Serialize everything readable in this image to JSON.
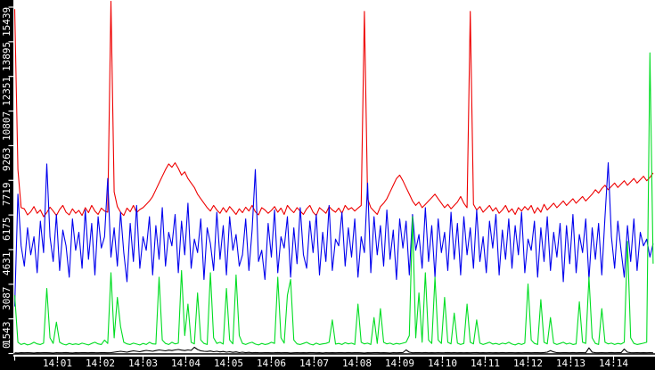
{
  "chart_data": {
    "type": "line",
    "grid": false,
    "legend": false,
    "plot_background": "#ffffff",
    "axis_strip_background": "#000000",
    "axis_text_color": "#ffffff",
    "x_axis": {
      "start_time": "14:00",
      "end_time": "14:15",
      "minutes_per_tick": 1,
      "tick_labels": [
        "14:01",
        "14:02",
        "14:03",
        "14:04",
        "14:05",
        "14:06",
        "14:07",
        "14:08",
        "14:09",
        "14:10",
        "14:11",
        "14:12",
        "14:13",
        "14:14"
      ]
    },
    "y_axis": {
      "min": 0,
      "max": 15439,
      "ticks": [
        0,
        1543,
        3087,
        4631,
        6175,
        7719,
        9263,
        10807,
        12351,
        13895,
        15439
      ],
      "tick_labels": [
        "0",
        "1543",
        "3087",
        "4631",
        "6175",
        "7719",
        "9263",
        "10807",
        "12351",
        "13895",
        "15439"
      ]
    },
    "sample_step_minutes": 0.075,
    "series": [
      {
        "name": "red-series",
        "color": "#ee0000",
        "values": [
          15350,
          8200,
          6500,
          6450,
          6180,
          6320,
          6550,
          6250,
          6400,
          6100,
          6280,
          6520,
          6350,
          6150,
          6420,
          6600,
          6300,
          6180,
          6450,
          6250,
          6380,
          6150,
          6500,
          6280,
          6600,
          6350,
          6200,
          6480,
          6350,
          6300,
          15700,
          7200,
          6550,
          6300,
          6150,
          6480,
          6320,
          6600,
          6280,
          6420,
          6500,
          6650,
          6800,
          7000,
          7300,
          7600,
          7900,
          8200,
          8450,
          8300,
          8500,
          8250,
          7950,
          8100,
          7800,
          7600,
          7400,
          7100,
          6900,
          6700,
          6500,
          6350,
          6600,
          6400,
          6250,
          6500,
          6300,
          6550,
          6380,
          6200,
          6450,
          6280,
          6520,
          6350,
          6600,
          6320,
          6180,
          6500,
          6400,
          6250,
          6380,
          6550,
          6300,
          6480,
          6200,
          6600,
          6420,
          6280,
          6500,
          6350,
          6200,
          6450,
          6600,
          6300,
          6150,
          6500,
          6380,
          6250,
          6550,
          6400,
          6300,
          6480,
          6250,
          6600,
          6420,
          6500,
          6350,
          6480,
          6600,
          15250,
          6900,
          6500,
          6350,
          6200,
          6550,
          6700,
          6900,
          7200,
          7500,
          7800,
          7950,
          7700,
          7400,
          7100,
          6800,
          6600,
          6750,
          6500,
          6650,
          6800,
          6950,
          7100,
          6900,
          6700,
          6500,
          6650,
          6450,
          6600,
          6750,
          7000,
          6700,
          6500,
          15250,
          6650,
          6400,
          6550,
          6300,
          6450,
          6600,
          6350,
          6500,
          6250,
          6400,
          6600,
          6300,
          6450,
          6200,
          6500,
          6350,
          6550,
          6400,
          6600,
          6250,
          6500,
          6300,
          6650,
          6400,
          6550,
          6700,
          6500,
          6650,
          6800,
          6600,
          6750,
          6900,
          6700,
          6850,
          7000,
          6800,
          6950,
          7100,
          7300,
          7150,
          7350,
          7500,
          7300,
          7450,
          7600,
          7400,
          7550,
          7700,
          7500,
          7650,
          7800,
          7600,
          7750,
          7900,
          7700,
          7850,
          8050
        ]
      },
      {
        "name": "blue-series",
        "color": "#0000ee",
        "values": [
          2100,
          7100,
          4800,
          3900,
          5600,
          4400,
          5200,
          3600,
          5900,
          4500,
          8450,
          5200,
          4100,
          6200,
          3700,
          5500,
          4800,
          3400,
          6000,
          4600,
          5400,
          3800,
          6400,
          4200,
          5800,
          3500,
          6100,
          4700,
          5200,
          7800,
          4300,
          5600,
          3900,
          6300,
          4500,
          3200,
          5800,
          4100,
          6600,
          3800,
          5200,
          4600,
          6100,
          3500,
          5700,
          4200,
          6500,
          3900,
          5400,
          4800,
          6200,
          3600,
          5900,
          4400,
          6700,
          3800,
          5100,
          4500,
          6000,
          3300,
          5600,
          4900,
          3700,
          6300,
          4200,
          5700,
          3500,
          6100,
          4600,
          5300,
          3900,
          4400,
          6000,
          3700,
          5500,
          8200,
          4100,
          4600,
          3300,
          5800,
          4300,
          6400,
          3600,
          5200,
          4700,
          6100,
          3400,
          5600,
          4000,
          6500,
          4400,
          3800,
          5900,
          4500,
          6200,
          3500,
          5400,
          4100,
          6600,
          3700,
          5100,
          4800,
          6300,
          3900,
          5600,
          4300,
          6000,
          3400,
          5200,
          4500,
          7600,
          3600,
          6100,
          4400,
          5700,
          3900,
          6400,
          4200,
          5500,
          3300,
          6000,
          4700,
          5900,
          3500,
          6200,
          4600,
          5300,
          3800,
          6500,
          4100,
          5700,
          3400,
          6000,
          4500,
          5400,
          3700,
          6300,
          4200,
          5800,
          3500,
          6100,
          4400,
          5600,
          3800,
          6400,
          4100,
          5200,
          3600,
          5900,
          4700,
          6200,
          3500,
          5500,
          4200,
          6000,
          3800,
          5700,
          4400,
          6300,
          3600,
          5100,
          4600,
          5900,
          3400,
          5600,
          4100,
          6100,
          3700,
          5400,
          4300,
          5800,
          3200,
          5700,
          4000,
          6200,
          3600,
          5300,
          4500,
          6000,
          3300,
          5600,
          4200,
          5800,
          3500,
          6100,
          8500,
          5200,
          3800,
          5900,
          4600,
          3400,
          5700,
          4100,
          6000,
          3700,
          5400,
          4800,
          5100,
          4300,
          4900
        ]
      },
      {
        "name": "green-series",
        "color": "#00dd22",
        "values": [
          2600,
          500,
          400,
          450,
          380,
          420,
          500,
          430,
          400,
          460,
          2900,
          700,
          450,
          1400,
          500,
          420,
          380,
          450,
          400,
          430,
          400,
          460,
          420,
          380,
          450,
          500,
          430,
          400,
          600,
          450,
          3600,
          700,
          2500,
          1200,
          500,
          430,
          400,
          460,
          420,
          380,
          450,
          400,
          500,
          430,
          420,
          3400,
          600,
          450,
          400,
          500,
          430,
          460,
          3700,
          800,
          2200,
          500,
          430,
          2700,
          600,
          450,
          400,
          3600,
          700,
          450,
          500,
          420,
          2900,
          600,
          430,
          3500,
          800,
          450,
          400,
          460,
          500,
          420,
          380,
          450,
          400,
          430,
          500,
          450,
          3400,
          700,
          460,
          2600,
          3300,
          600,
          430,
          400,
          450,
          500,
          420,
          380,
          460,
          400,
          430,
          450,
          500,
          1500,
          420,
          450,
          400,
          480,
          430,
          460,
          400,
          2200,
          500,
          430,
          460,
          400,
          1600,
          450,
          2000,
          500,
          430,
          460,
          400,
          450,
          420,
          460,
          500,
          800,
          6100,
          700,
          2700,
          500,
          3600,
          600,
          450,
          3400,
          600,
          450,
          2500,
          500,
          430,
          1800,
          460,
          400,
          450,
          2200,
          500,
          430,
          1500,
          460,
          400,
          450,
          500,
          420,
          450,
          400,
          460,
          430,
          500,
          420,
          380,
          450,
          400,
          460,
          3100,
          600,
          450,
          400,
          2400,
          500,
          430,
          1600,
          460,
          400,
          450,
          500,
          420,
          460,
          400,
          430,
          2300,
          500,
          450,
          3400,
          700,
          450,
          400,
          2000,
          500,
          430,
          460,
          400,
          450,
          420,
          500,
          5000,
          700,
          450,
          400,
          430,
          460,
          500,
          13400,
          4000
        ]
      },
      {
        "name": "black-series",
        "color": "#000000",
        "values": [
          30,
          25,
          35,
          30,
          40,
          30,
          25,
          35,
          30,
          40,
          35,
          30,
          25,
          40,
          30,
          35,
          45,
          30,
          25,
          35,
          30,
          40,
          35,
          30,
          45,
          35,
          30,
          40,
          35,
          30,
          40,
          60,
          80,
          100,
          80,
          60,
          90,
          120,
          100,
          80,
          110,
          140,
          120,
          100,
          130,
          160,
          140,
          120,
          150,
          130,
          160,
          180,
          150,
          130,
          160,
          140,
          280,
          180,
          120,
          100,
          90,
          110,
          80,
          100,
          70,
          90,
          60,
          80,
          50,
          70,
          40,
          60,
          35,
          50,
          30,
          45,
          35,
          30,
          40,
          35,
          30,
          35,
          45,
          30,
          40,
          35,
          25,
          30,
          40,
          30,
          35,
          30,
          45,
          40,
          30,
          35,
          25,
          40,
          30,
          35,
          30,
          40,
          35,
          30,
          45,
          30,
          35,
          40,
          30,
          25,
          35,
          30,
          40,
          45,
          30,
          35,
          30,
          25,
          40,
          30,
          35,
          40,
          160,
          60,
          30,
          35,
          40,
          30,
          45,
          30,
          35,
          30,
          40,
          30,
          35,
          45,
          30,
          40,
          30,
          35,
          30,
          35,
          30,
          40,
          45,
          30,
          35,
          30,
          40,
          30,
          35,
          30,
          45,
          30,
          35,
          40,
          30,
          35,
          30,
          40,
          35,
          30,
          40,
          35,
          30,
          45,
          60,
          130,
          70,
          35,
          30,
          40,
          35,
          30,
          45,
          30,
          35,
          40,
          30,
          250,
          60,
          35,
          30,
          40,
          30,
          35,
          45,
          30,
          40,
          35,
          200,
          60,
          35,
          30,
          40,
          30,
          35,
          30,
          40,
          30
        ]
      }
    ]
  }
}
